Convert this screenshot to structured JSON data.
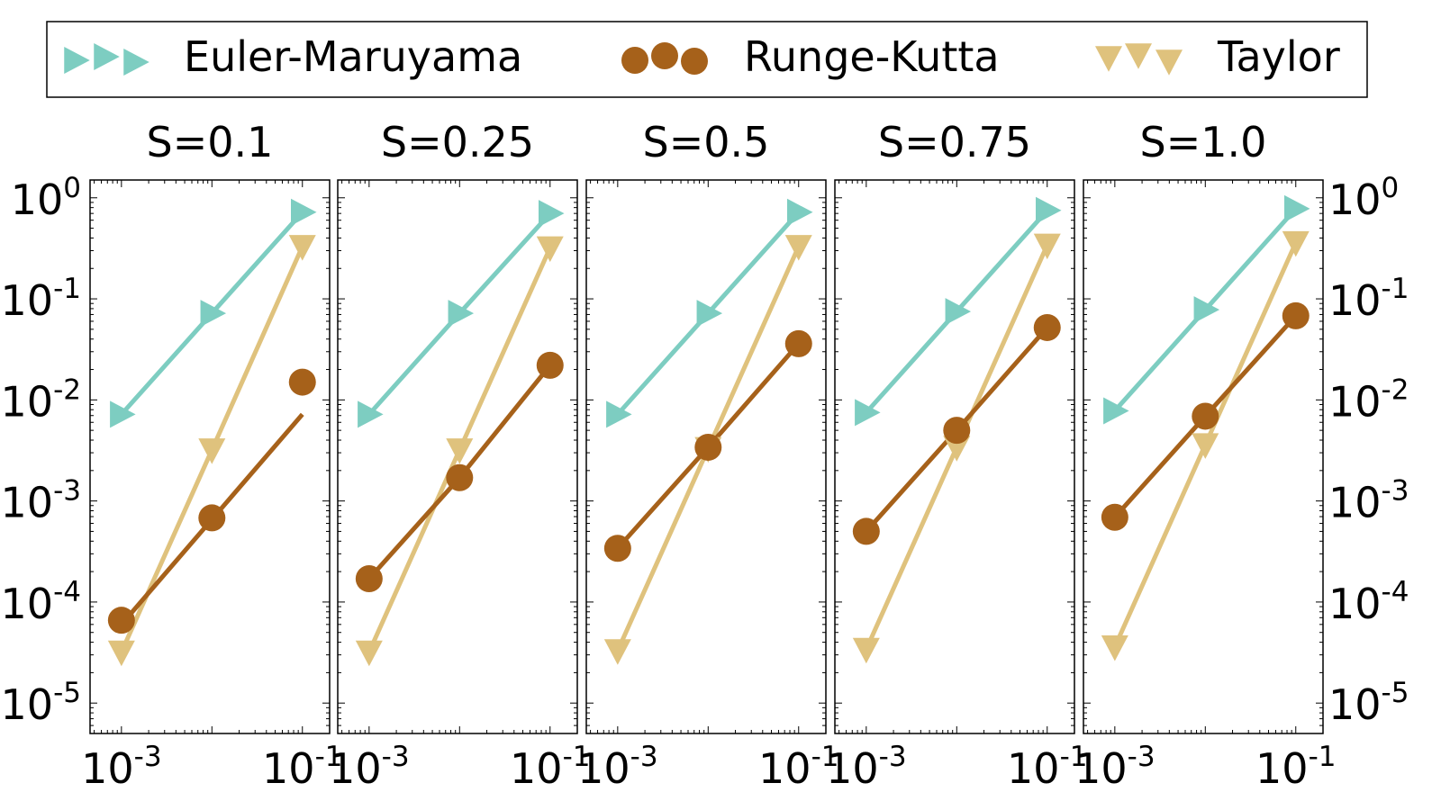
{
  "legend": {
    "placement": "top",
    "items": [
      {
        "label": "Euler-Maruyama",
        "marker": "triangle-right",
        "color": "#7dcdc1"
      },
      {
        "label": "Runge-Kutta",
        "marker": "circle",
        "color": "#a6611a"
      },
      {
        "label": "Taylor",
        "marker": "triangle-down",
        "color": "#dfc27d"
      }
    ]
  },
  "axes": {
    "x_scale": "log",
    "y_scale": "log",
    "x_ticks": [
      {
        "base": "10",
        "exp": "-3",
        "value": 0.001
      },
      {
        "base": "10",
        "exp": "-1",
        "value": 0.1
      }
    ],
    "y_ticks": [
      {
        "base": "10",
        "exp": "0",
        "value": 1
      },
      {
        "base": "10",
        "exp": "-1",
        "value": 0.1
      },
      {
        "base": "10",
        "exp": "-2",
        "value": 0.01
      },
      {
        "base": "10",
        "exp": "-3",
        "value": 0.001
      },
      {
        "base": "10",
        "exp": "-4",
        "value": 0.0001
      },
      {
        "base": "10",
        "exp": "-5",
        "value": 1e-05
      }
    ]
  },
  "chart_data": [
    {
      "type": "line",
      "title": "S=0.1",
      "xlim": [
        0.00045,
        0.2
      ],
      "ylim": [
        5e-06,
        1.5
      ],
      "x": [
        0.001,
        0.01,
        0.1
      ],
      "series": [
        {
          "name": "Euler-Maruyama",
          "values": [
            0.0072,
            0.072,
            0.72
          ]
        },
        {
          "name": "Runge-Kutta",
          "values": [
            6.6e-05,
            0.00068,
            0.015
          ],
          "fit_line": [
            6e-05,
            0.0072
          ]
        },
        {
          "name": "Taylor",
          "values": [
            3.2e-05,
            0.0032,
            0.33
          ]
        }
      ]
    },
    {
      "type": "line",
      "title": "S=0.25",
      "xlim": [
        0.00045,
        0.2
      ],
      "ylim": [
        5e-06,
        1.5
      ],
      "x": [
        0.001,
        0.01,
        0.1
      ],
      "series": [
        {
          "name": "Euler-Maruyama",
          "values": [
            0.0072,
            0.072,
            0.7
          ]
        },
        {
          "name": "Runge-Kutta",
          "values": [
            0.00017,
            0.0017,
            0.022
          ],
          "fit_line": null
        },
        {
          "name": "Taylor",
          "values": [
            3.2e-05,
            0.0032,
            0.32
          ]
        }
      ]
    },
    {
      "type": "line",
      "title": "S=0.5",
      "xlim": [
        0.00045,
        0.2
      ],
      "ylim": [
        5e-06,
        1.5
      ],
      "x": [
        0.001,
        0.01,
        0.1
      ],
      "series": [
        {
          "name": "Euler-Maruyama",
          "values": [
            0.0072,
            0.072,
            0.72
          ]
        },
        {
          "name": "Runge-Kutta",
          "values": [
            0.00034,
            0.0034,
            0.036
          ],
          "fit_line": null
        },
        {
          "name": "Taylor",
          "values": [
            3.3e-05,
            0.0033,
            0.33
          ]
        }
      ]
    },
    {
      "type": "line",
      "title": "S=0.75",
      "xlim": [
        0.00045,
        0.2
      ],
      "ylim": [
        5e-06,
        1.5
      ],
      "x": [
        0.001,
        0.01,
        0.1
      ],
      "series": [
        {
          "name": "Euler-Maruyama",
          "values": [
            0.0075,
            0.075,
            0.75
          ]
        },
        {
          "name": "Runge-Kutta",
          "values": [
            0.0005,
            0.005,
            0.052
          ],
          "fit_line": null
        },
        {
          "name": "Taylor",
          "values": [
            3.4e-05,
            0.0034,
            0.34
          ]
        }
      ]
    },
    {
      "type": "line",
      "title": "S=1.0",
      "xlim": [
        0.00045,
        0.2
      ],
      "ylim": [
        5e-06,
        1.5
      ],
      "x": [
        0.001,
        0.01,
        0.1
      ],
      "series": [
        {
          "name": "Euler-Maruyama",
          "values": [
            0.0078,
            0.078,
            0.78
          ]
        },
        {
          "name": "Runge-Kutta",
          "values": [
            0.00069,
            0.0069,
            0.068
          ],
          "fit_line": null
        },
        {
          "name": "Taylor",
          "values": [
            3.6e-05,
            0.0036,
            0.36
          ]
        }
      ]
    }
  ]
}
